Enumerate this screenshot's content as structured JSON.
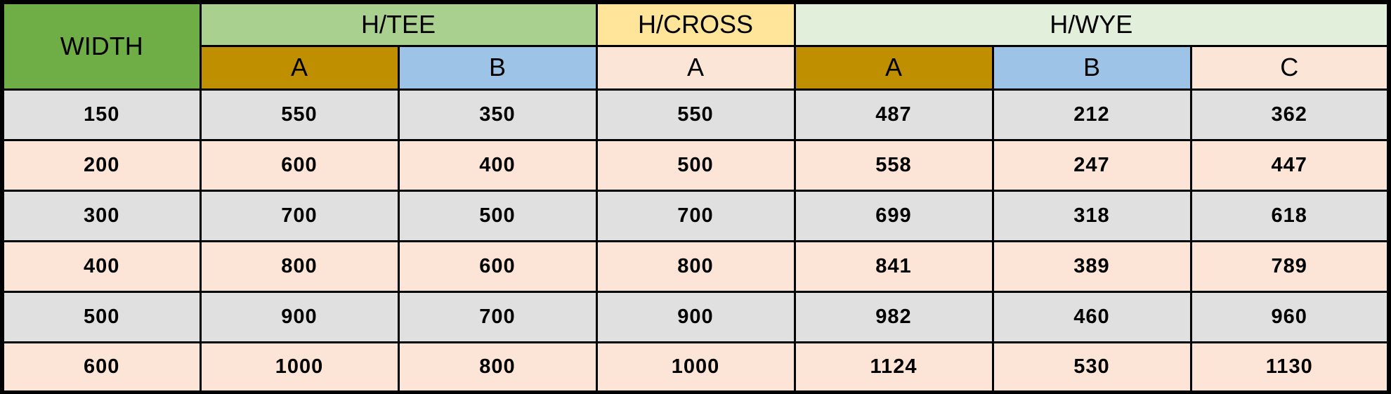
{
  "colors": {
    "border": "#000000",
    "text": "#000000",
    "width_header_bg": "#6fad47",
    "htee_header_bg": "#a9d08e",
    "hcross_header_bg": "#ffe599",
    "hwye_header_bg": "#e2efda",
    "sub_a_gold_bg": "#bf8f00",
    "sub_b_blue_bg": "#9dc3e6",
    "sub_peach_bg": "#fbe5d6",
    "row_even_bg": "#e0e0e0",
    "row_odd_bg": "#fce5d6"
  },
  "chart_data": {
    "type": "table",
    "header_groups": [
      {
        "label": "WIDTH",
        "colspan": 1,
        "rowspan": 2,
        "bg": "#6fad47",
        "name": "header-width"
      },
      {
        "label": "H/TEE",
        "colspan": 2,
        "rowspan": 1,
        "bg": "#a9d08e",
        "name": "header-h-tee"
      },
      {
        "label": "H/CROSS",
        "colspan": 1,
        "rowspan": 1,
        "bg": "#ffe599",
        "name": "header-h-cross"
      },
      {
        "label": "H/WYE",
        "colspan": 3,
        "rowspan": 1,
        "bg": "#e2efda",
        "name": "header-h-wye"
      }
    ],
    "sub_headers": [
      {
        "label": "A",
        "bg": "#bf8f00",
        "name": "subheader-htee-a"
      },
      {
        "label": "B",
        "bg": "#9dc3e6",
        "name": "subheader-htee-b"
      },
      {
        "label": "A",
        "bg": "#fbe5d6",
        "name": "subheader-hcross-a"
      },
      {
        "label": "A",
        "bg": "#bf8f00",
        "name": "subheader-hwye-a"
      },
      {
        "label": "B",
        "bg": "#9dc3e6",
        "name": "subheader-hwye-b"
      },
      {
        "label": "C",
        "bg": "#fbe5d6",
        "name": "subheader-hwye-c"
      }
    ],
    "columns": [
      "WIDTH",
      "H/TEE A",
      "H/TEE B",
      "H/CROSS A",
      "H/WYE A",
      "H/WYE B",
      "H/WYE C"
    ],
    "rows": [
      [
        "150",
        "550",
        "350",
        "550",
        "487",
        "212",
        "362"
      ],
      [
        "200",
        "600",
        "400",
        "500",
        "558",
        "247",
        "447"
      ],
      [
        "300",
        "700",
        "500",
        "700",
        "699",
        "318",
        "618"
      ],
      [
        "400",
        "800",
        "600",
        "800",
        "841",
        "389",
        "789"
      ],
      [
        "500",
        "900",
        "700",
        "900",
        "982",
        "460",
        "960"
      ],
      [
        "600",
        "1000",
        "800",
        "1000",
        "1124",
        "530",
        "1130"
      ]
    ],
    "row_colors": [
      "#e0e0e0",
      "#fce5d6"
    ]
  }
}
